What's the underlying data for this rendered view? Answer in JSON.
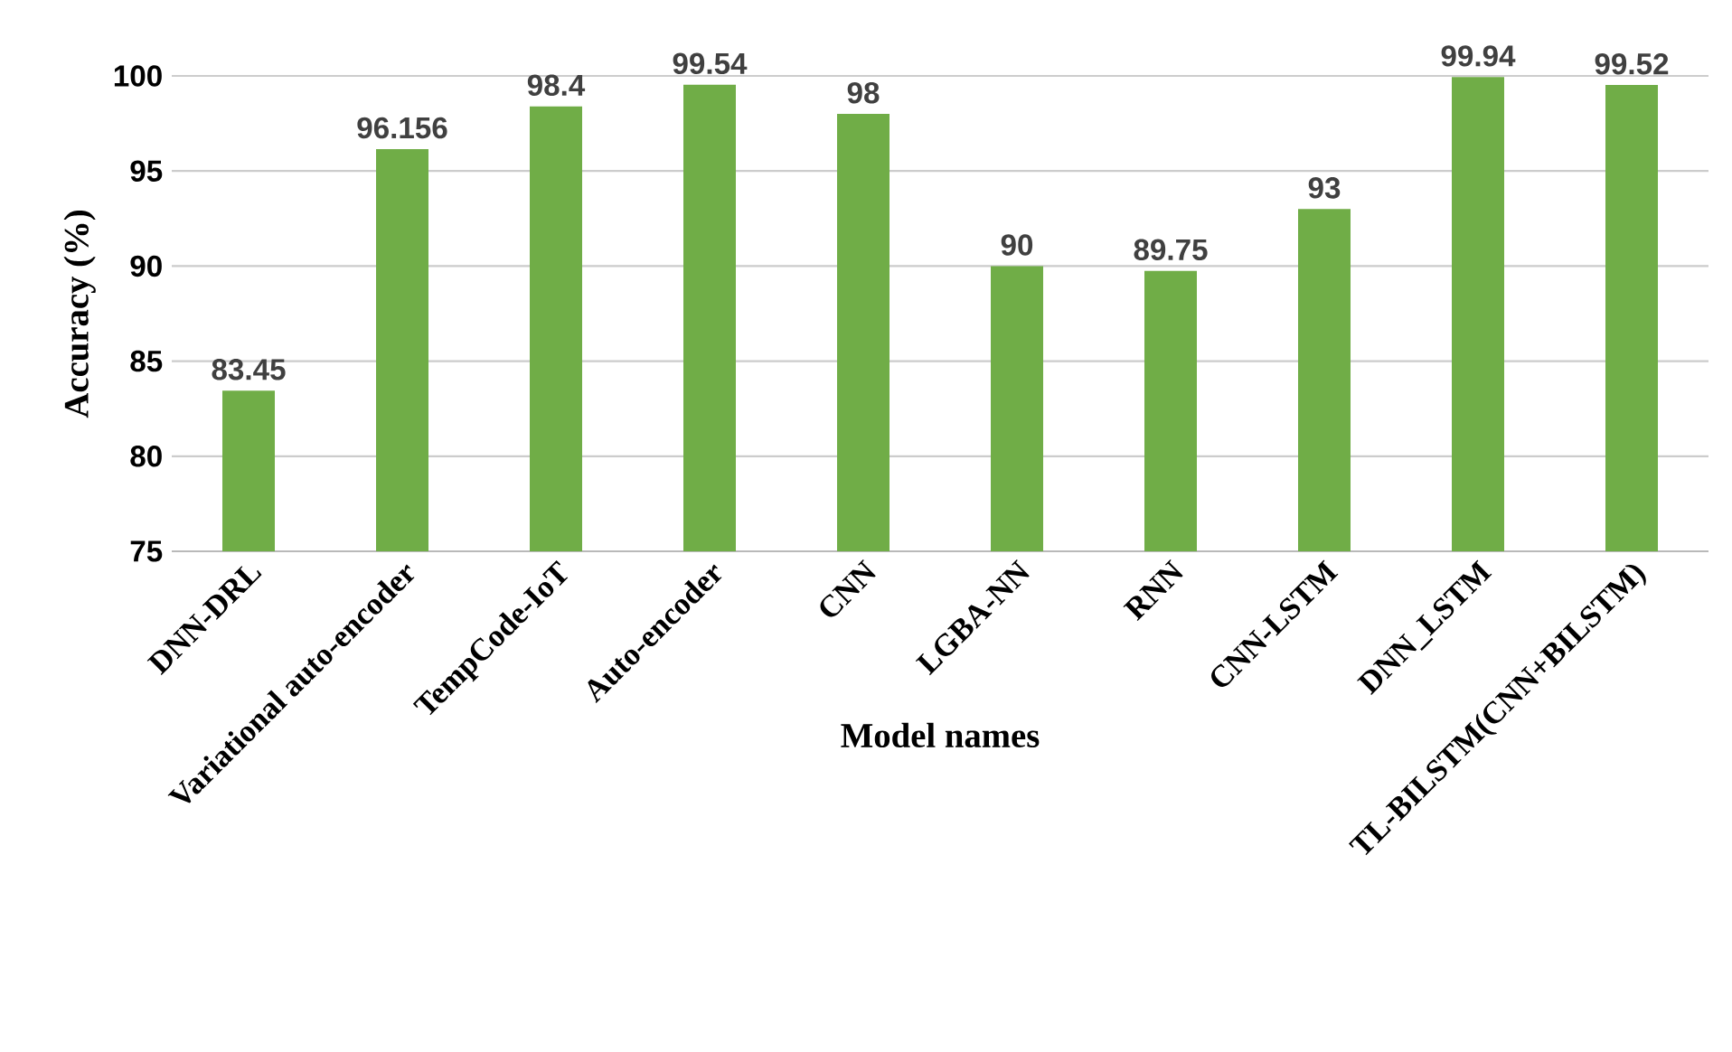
{
  "chart_data": {
    "type": "bar",
    "xlabel": "Model names",
    "ylabel": "Accuracy (%)",
    "categories": [
      "DNN-DRL",
      "Variational auto-encoder",
      "TempCode-IoT",
      "Auto-encoder",
      "CNN",
      "LGBA-NN",
      "RNN",
      "CNN-LSTM",
      "DNN_LSTM",
      "TL-BILSTM(CNN+BILSTM)"
    ],
    "values": [
      83.45,
      96.156,
      98.4,
      99.54,
      98,
      90,
      89.75,
      93,
      99.94,
      99.52
    ],
    "color": "#70ad47",
    "ylim": [
      75,
      100
    ],
    "yticks": [
      75,
      80,
      85,
      90,
      95,
      100
    ],
    "grid": "y",
    "data_labels": true
  }
}
